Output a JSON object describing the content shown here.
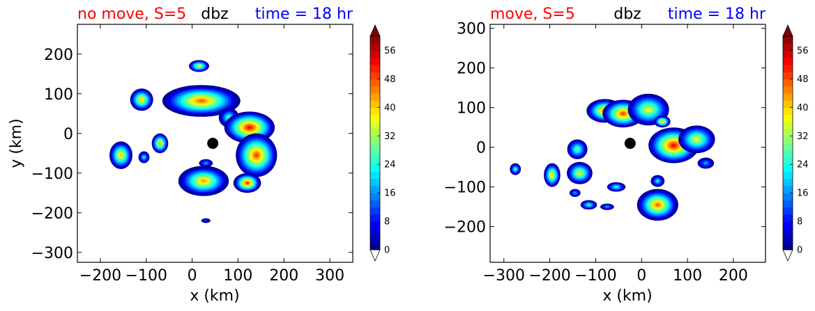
{
  "colorbar": {
    "ticks": [
      0,
      8,
      16,
      24,
      32,
      40,
      48,
      56
    ],
    "tick_labels": [
      "0",
      "8",
      "16",
      "24",
      "32",
      "40",
      "48",
      "56"
    ],
    "levels": [
      0,
      60
    ],
    "extend": "both",
    "colormap": "jet"
  },
  "chart_data": [
    {
      "type": "heatmap",
      "titles": {
        "left": "no move, S=5",
        "center": "dbz",
        "right": "time = 18 hr"
      },
      "title_colors": {
        "left": "#ff0000",
        "center": "#000000",
        "right": "#0000ff"
      },
      "xlabel": "x (km)",
      "ylabel": "y (km)",
      "xlim": [
        -250,
        350
      ],
      "ylim": [
        -325,
        275
      ],
      "xticks": [
        -200,
        -100,
        0,
        100,
        200,
        300
      ],
      "xtick_labels": [
        "−200",
        "−100",
        "0",
        "100",
        "200",
        "300"
      ],
      "yticks": [
        -300,
        -200,
        -100,
        0,
        100,
        200
      ],
      "ytick_labels": [
        "−300",
        "−200",
        "−100",
        "0",
        "100",
        "200"
      ],
      "center_marker": {
        "x": 45,
        "y": -25
      },
      "cells": [
        {
          "x": 15,
          "y": 170,
          "rx": 22,
          "ry": 15,
          "peak": 40
        },
        {
          "x": -110,
          "y": 85,
          "rx": 25,
          "ry": 28,
          "peak": 44
        },
        {
          "x": 20,
          "y": 82,
          "rx": 85,
          "ry": 40,
          "peak": 50
        },
        {
          "x": 80,
          "y": 40,
          "rx": 22,
          "ry": 25,
          "peak": 30
        },
        {
          "x": 125,
          "y": 15,
          "rx": 55,
          "ry": 40,
          "peak": 56
        },
        {
          "x": 140,
          "y": -55,
          "rx": 45,
          "ry": 55,
          "peak": 52
        },
        {
          "x": 120,
          "y": -125,
          "rx": 30,
          "ry": 25,
          "peak": 54
        },
        {
          "x": -155,
          "y": -55,
          "rx": 25,
          "ry": 35,
          "peak": 44
        },
        {
          "x": -70,
          "y": -25,
          "rx": 18,
          "ry": 25,
          "peak": 44
        },
        {
          "x": -105,
          "y": -60,
          "rx": 12,
          "ry": 15,
          "peak": 26
        },
        {
          "x": 25,
          "y": -120,
          "rx": 55,
          "ry": 38,
          "peak": 46
        },
        {
          "x": 30,
          "y": -75,
          "rx": 15,
          "ry": 10,
          "peak": 20
        },
        {
          "x": 30,
          "y": -220,
          "rx": 10,
          "ry": 6,
          "peak": 14
        }
      ]
    },
    {
      "type": "heatmap",
      "titles": {
        "left": "move, S=5",
        "center": "dbz",
        "right": "time = 18 hr"
      },
      "title_colors": {
        "left": "#ff0000",
        "center": "#000000",
        "right": "#0000ff"
      },
      "xlabel": "x (km)",
      "ylabel": "",
      "xlim": [
        -330,
        270
      ],
      "ylim": [
        -290,
        310
      ],
      "xticks": [
        -300,
        -200,
        -100,
        0,
        100,
        200
      ],
      "xtick_labels": [
        "−300",
        "−200",
        "−100",
        "0",
        "100",
        "200"
      ],
      "yticks": [
        -200,
        -100,
        0,
        100,
        200,
        300
      ],
      "ytick_labels": [
        "−200",
        "−100",
        "0",
        "100",
        "200",
        "300"
      ],
      "center_marker": {
        "x": -25,
        "y": 10
      },
      "cells": [
        {
          "x": -80,
          "y": 92,
          "rx": 40,
          "ry": 30,
          "peak": 50
        },
        {
          "x": -40,
          "y": 85,
          "rx": 45,
          "ry": 35,
          "peak": 52
        },
        {
          "x": 15,
          "y": 95,
          "rx": 45,
          "ry": 40,
          "peak": 40
        },
        {
          "x": 45,
          "y": 65,
          "rx": 18,
          "ry": 15,
          "peak": 46
        },
        {
          "x": 70,
          "y": 5,
          "rx": 55,
          "ry": 45,
          "peak": 56
        },
        {
          "x": 120,
          "y": 20,
          "rx": 40,
          "ry": 35,
          "peak": 40
        },
        {
          "x": 140,
          "y": -40,
          "rx": 18,
          "ry": 14,
          "peak": 20
        },
        {
          "x": -140,
          "y": -5,
          "rx": 22,
          "ry": 25,
          "peak": 32
        },
        {
          "x": -135,
          "y": -65,
          "rx": 28,
          "ry": 28,
          "peak": 40
        },
        {
          "x": -195,
          "y": -70,
          "rx": 18,
          "ry": 30,
          "peak": 44
        },
        {
          "x": -275,
          "y": -55,
          "rx": 12,
          "ry": 15,
          "peak": 30
        },
        {
          "x": -55,
          "y": -100,
          "rx": 20,
          "ry": 12,
          "peak": 28
        },
        {
          "x": -145,
          "y": -115,
          "rx": 12,
          "ry": 10,
          "peak": 20
        },
        {
          "x": -115,
          "y": -145,
          "rx": 18,
          "ry": 12,
          "peak": 28
        },
        {
          "x": 35,
          "y": -145,
          "rx": 45,
          "ry": 40,
          "peak": 50
        },
        {
          "x": 35,
          "y": -85,
          "rx": 15,
          "ry": 15,
          "peak": 26
        },
        {
          "x": -75,
          "y": -150,
          "rx": 15,
          "ry": 8,
          "peak": 20
        }
      ]
    }
  ]
}
